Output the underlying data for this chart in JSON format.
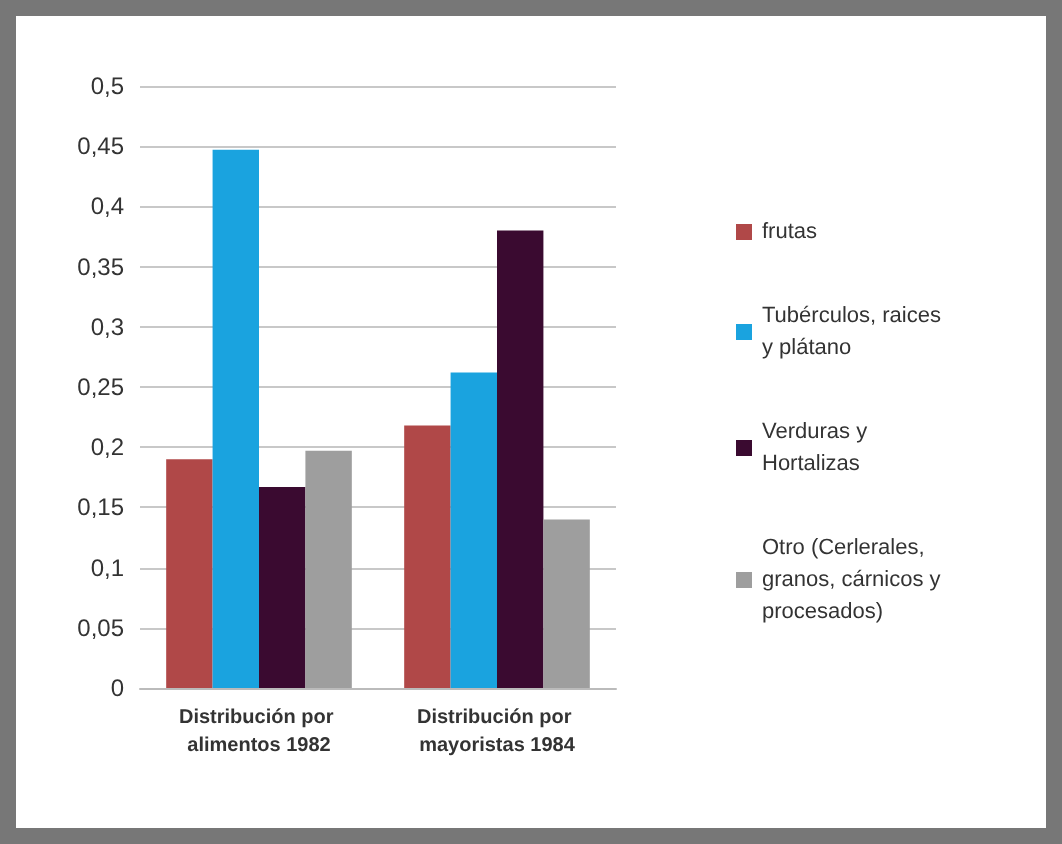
{
  "chart_data": {
    "type": "bar",
    "categories": [
      "Distribución por alimentos 1982",
      "Distribución por mayoristas 1984"
    ],
    "series": [
      {
        "name": "frutas",
        "color": "#b04848",
        "values": [
          0.19,
          0.218
        ]
      },
      {
        "name": "Tubérculos, raices y plátano",
        "color": "#1aa3df",
        "values": [
          0.447,
          0.262
        ]
      },
      {
        "name": "Verduras y Hortalizas",
        "color": "#3a0a30",
        "values": [
          0.167,
          0.38
        ]
      },
      {
        "name": "Otro (Cerlerales, granos, cárnicos y procesados)",
        "color": "#9e9e9e",
        "values": [
          0.197,
          0.14
        ]
      }
    ],
    "ylim": [
      0,
      0.5
    ],
    "yticks": [
      {
        "value": 0,
        "label": "0"
      },
      {
        "value": 0.05,
        "label": "0,05"
      },
      {
        "value": 0.1,
        "label": "0,1"
      },
      {
        "value": 0.15,
        "label": "0,15"
      },
      {
        "value": 0.2,
        "label": "0,2"
      },
      {
        "value": 0.25,
        "label": "0,25"
      },
      {
        "value": 0.3,
        "label": "0,3"
      },
      {
        "value": 0.35,
        "label": "0,35"
      },
      {
        "value": 0.4,
        "label": "0,4"
      },
      {
        "value": 0.45,
        "label": "0,45"
      },
      {
        "value": 0.5,
        "label": "0,5"
      }
    ],
    "grid": "y",
    "legend": "right"
  }
}
